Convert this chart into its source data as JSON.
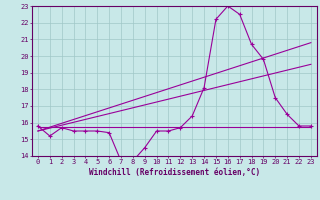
{
  "xlabel": "Windchill (Refroidissement éolien,°C)",
  "xlim": [
    -0.5,
    23.5
  ],
  "ylim": [
    14,
    23
  ],
  "xticks": [
    0,
    1,
    2,
    3,
    4,
    5,
    6,
    7,
    8,
    9,
    10,
    11,
    12,
    13,
    14,
    15,
    16,
    17,
    18,
    19,
    20,
    21,
    22,
    23
  ],
  "yticks": [
    14,
    15,
    16,
    17,
    18,
    19,
    20,
    21,
    22,
    23
  ],
  "bg_color": "#c8e8e8",
  "grid_color": "#a0c8c8",
  "line_color": "#990099",
  "font_color": "#660066",
  "tick_fontsize": 5.0,
  "label_fontsize": 5.5,
  "line1_x": [
    0,
    1,
    2,
    3,
    4,
    5,
    6,
    7,
    8,
    9,
    10,
    11,
    12,
    13,
    14,
    15,
    16,
    17,
    18,
    19,
    20,
    21,
    22,
    23
  ],
  "line1_y": [
    15.8,
    15.2,
    15.7,
    15.5,
    15.5,
    15.5,
    15.4,
    13.7,
    13.7,
    14.5,
    15.5,
    15.5,
    15.7,
    16.4,
    18.1,
    22.2,
    23.0,
    22.5,
    20.7,
    19.8,
    17.5,
    16.5,
    15.8,
    15.8
  ],
  "line2_x": [
    0,
    23
  ],
  "line2_y": [
    15.75,
    15.75
  ],
  "line3_x": [
    0,
    23
  ],
  "line3_y": [
    15.5,
    20.8
  ],
  "line4_x": [
    0,
    23
  ],
  "line4_y": [
    15.5,
    19.5
  ]
}
